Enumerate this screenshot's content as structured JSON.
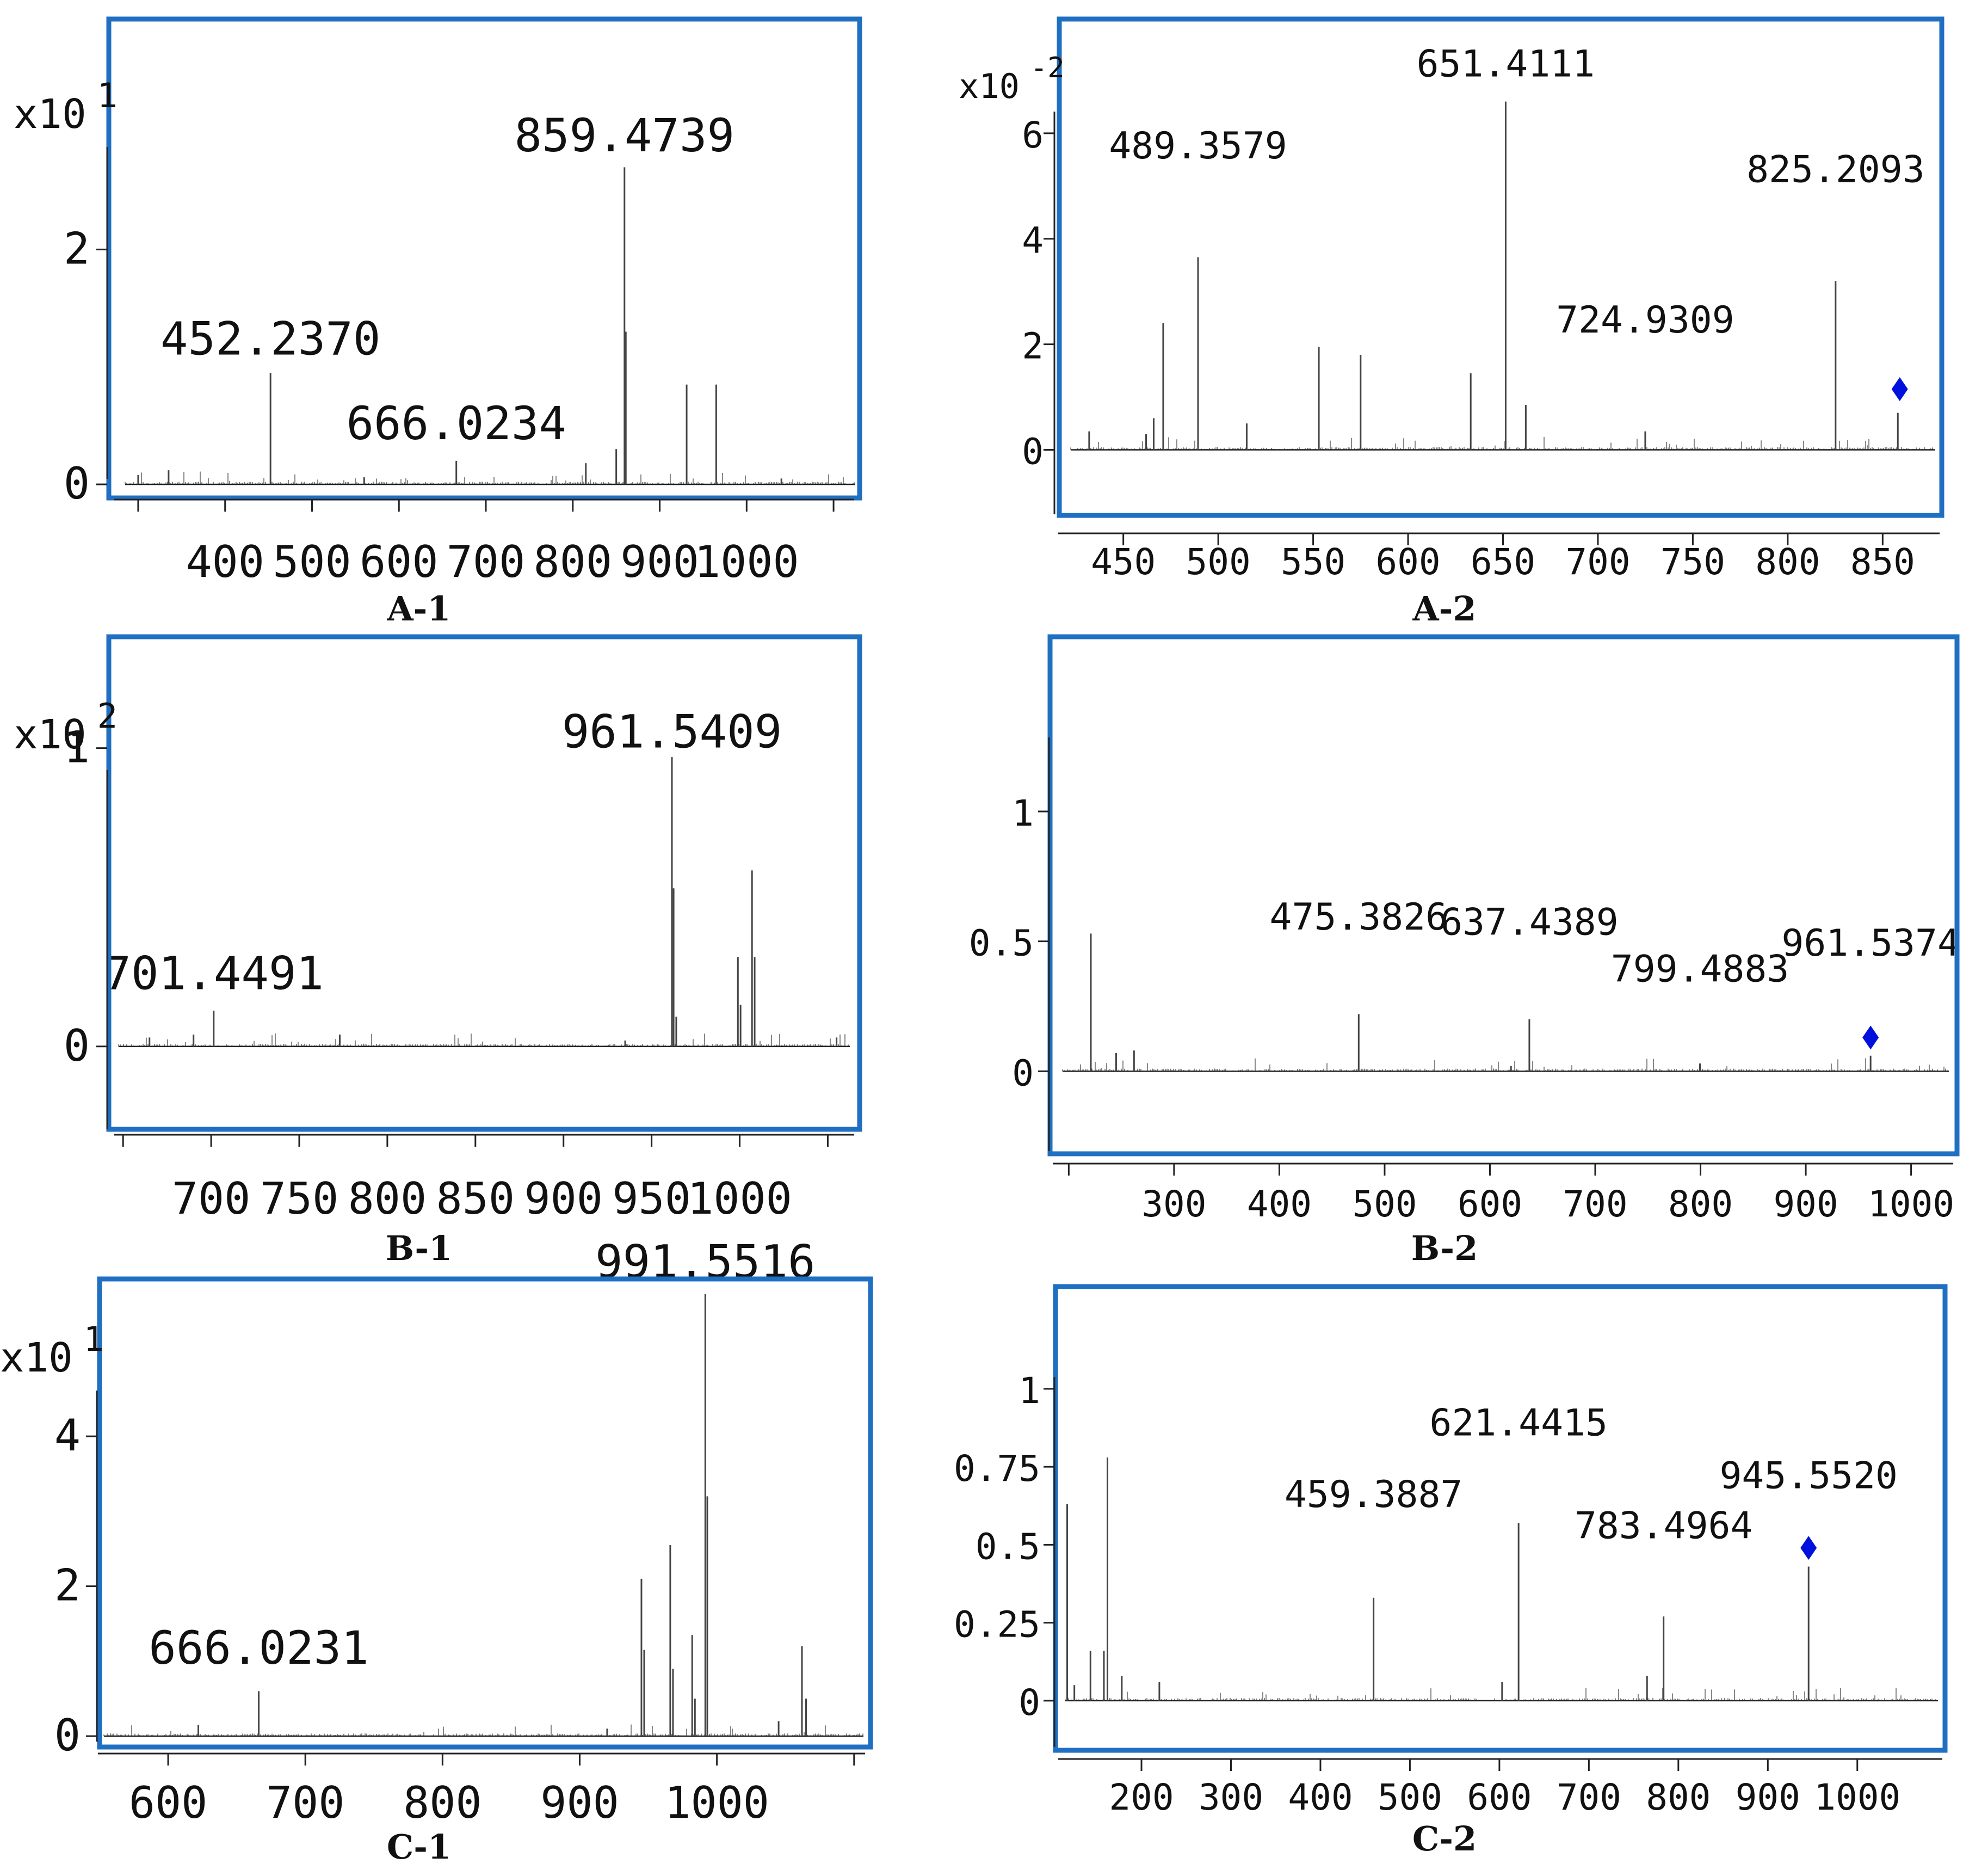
{
  "figure": {
    "accent_frame_color": "#1f6fc2",
    "marker_color": "#0011dd",
    "marker_shape": "diamond",
    "spectrum_color": "#444444"
  },
  "chart_data": [
    {
      "id": "A-1",
      "type": "bar",
      "label": "A-1",
      "multiplier": "x10",
      "exponent": "1",
      "xlim": [
        280,
        1130
      ],
      "ylim": [
        0,
        3.8
      ],
      "xticks": [
        400,
        500,
        600,
        700,
        800,
        900,
        1000
      ],
      "yticks": [
        0,
        2
      ],
      "peaks": [
        {
          "x": 300,
          "y": 0.08
        },
        {
          "x": 335,
          "y": 0.12
        },
        {
          "x": 452.237,
          "y": 0.95
        },
        {
          "x": 560,
          "y": 0.06
        },
        {
          "x": 666.0234,
          "y": 0.2
        },
        {
          "x": 815,
          "y": 0.18
        },
        {
          "x": 850,
          "y": 0.3
        },
        {
          "x": 859.4739,
          "y": 2.7
        },
        {
          "x": 861,
          "y": 1.3
        },
        {
          "x": 931,
          "y": 0.85
        },
        {
          "x": 965,
          "y": 0.85
        },
        {
          "x": 1040,
          "y": 0.05
        }
      ],
      "annotations": [
        {
          "text": "452.2370",
          "x": 452.237,
          "y": 1.05
        },
        {
          "text": "666.0234",
          "x": 666.0234,
          "y": 0.33
        },
        {
          "text": "859.4739",
          "x": 859.4739,
          "y": 2.78
        }
      ]
    },
    {
      "id": "A-2",
      "type": "bar",
      "label": "A-2",
      "multiplier": "x10",
      "exponent": "-2",
      "xlim": [
        420,
        880
      ],
      "ylim": [
        -0.5,
        7.7
      ],
      "xticks": [
        450,
        500,
        550,
        600,
        650,
        700,
        750,
        800,
        850
      ],
      "yticks": [
        0,
        2,
        4,
        6
      ],
      "peaks": [
        {
          "x": 432,
          "y": 0.35
        },
        {
          "x": 462,
          "y": 0.3
        },
        {
          "x": 466,
          "y": 0.6
        },
        {
          "x": 471,
          "y": 2.4
        },
        {
          "x": 489.3579,
          "y": 3.65
        },
        {
          "x": 515,
          "y": 0.5
        },
        {
          "x": 553,
          "y": 1.95
        },
        {
          "x": 575,
          "y": 1.8
        },
        {
          "x": 633,
          "y": 1.45
        },
        {
          "x": 651.4111,
          "y": 6.6
        },
        {
          "x": 662,
          "y": 0.85
        },
        {
          "x": 724.9309,
          "y": 0.35
        },
        {
          "x": 825.2093,
          "y": 3.2
        },
        {
          "x": 858,
          "y": 0.7
        }
      ],
      "marker": {
        "x": 859,
        "y": 1.15
      },
      "annotations": [
        {
          "text": "489.3579",
          "x": 489.3579,
          "y": 5.4
        },
        {
          "text": "651.4111",
          "x": 651.4111,
          "y": 6.95
        },
        {
          "text": "724.9309",
          "x": 724.9309,
          "y": 2.1
        },
        {
          "text": "825.2093",
          "x": 825.2093,
          "y": 4.95
        }
      ]
    },
    {
      "id": "B-1",
      "type": "bar",
      "label": "B-1",
      "multiplier": "x10",
      "exponent": "2",
      "xlim": [
        645,
        1065
      ],
      "ylim": [
        -0.15,
        1.2
      ],
      "xticks": [
        700,
        750,
        800,
        850,
        900,
        950,
        1000
      ],
      "yticks": [
        0,
        1
      ],
      "peaks": [
        {
          "x": 665,
          "y": 0.03
        },
        {
          "x": 690,
          "y": 0.04
        },
        {
          "x": 701.4491,
          "y": 0.12
        },
        {
          "x": 773,
          "y": 0.04
        },
        {
          "x": 935,
          "y": 0.02
        },
        {
          "x": 961.5409,
          "y": 0.97
        },
        {
          "x": 962.5,
          "y": 0.53
        },
        {
          "x": 964,
          "y": 0.1
        },
        {
          "x": 999,
          "y": 0.3
        },
        {
          "x": 1000.5,
          "y": 0.14
        },
        {
          "x": 1007,
          "y": 0.59
        },
        {
          "x": 1008.5,
          "y": 0.3
        },
        {
          "x": 1055,
          "y": 0.03
        }
      ],
      "annotations": [
        {
          "text": "701.4491",
          "x": 701.4491,
          "y": 0.17
        },
        {
          "text": "961.5409",
          "x": 961.5409,
          "y": 0.98
        }
      ]
    },
    {
      "id": "B-2",
      "type": "bar",
      "label": "B-2",
      "multiplier": "",
      "exponent": "",
      "xlim": [
        190,
        1040
      ],
      "ylim": [
        -0.15,
        1.4
      ],
      "xticks": [
        300,
        400,
        500,
        600,
        700,
        800,
        900,
        1000
      ],
      "yticks": [
        0,
        0.5,
        1
      ],
      "ytick_labels": [
        "0",
        "0.5",
        "1"
      ],
      "peaks": [
        {
          "x": 221,
          "y": 0.53
        },
        {
          "x": 245,
          "y": 0.07
        },
        {
          "x": 262,
          "y": 0.08
        },
        {
          "x": 475.3826,
          "y": 0.22
        },
        {
          "x": 620,
          "y": 0.02
        },
        {
          "x": 637.4389,
          "y": 0.2
        },
        {
          "x": 799.4883,
          "y": 0.03
        },
        {
          "x": 961.5374,
          "y": 0.06
        }
      ],
      "marker": {
        "x": 961.5374,
        "y": 0.13
      },
      "annotations": [
        {
          "text": "475.3826",
          "x": 475.3826,
          "y": 0.52
        },
        {
          "text": "637.4389",
          "x": 637.4389,
          "y": 0.5
        },
        {
          "text": "799.4883",
          "x": 799.4883,
          "y": 0.32
        },
        {
          "text": "961.5374",
          "x": 961.5374,
          "y": 0.42
        }
      ]
    },
    {
      "id": "C-1",
      "type": "bar",
      "label": "C-1",
      "multiplier": "x10",
      "exponent": "1",
      "xlim": [
        550,
        1110
      ],
      "ylim": [
        0,
        6.1
      ],
      "xticks": [
        600,
        700,
        800,
        900,
        1000
      ],
      "yticks": [
        0,
        2,
        4
      ],
      "peaks": [
        {
          "x": 622,
          "y": 0.15
        },
        {
          "x": 666.0231,
          "y": 0.6
        },
        {
          "x": 920,
          "y": 0.1
        },
        {
          "x": 945,
          "y": 2.1
        },
        {
          "x": 947,
          "y": 1.15
        },
        {
          "x": 966,
          "y": 2.55
        },
        {
          "x": 968,
          "y": 0.9
        },
        {
          "x": 982,
          "y": 1.35
        },
        {
          "x": 984,
          "y": 0.5
        },
        {
          "x": 991.5516,
          "y": 5.9
        },
        {
          "x": 993,
          "y": 3.2
        },
        {
          "x": 1045,
          "y": 0.2
        },
        {
          "x": 1062,
          "y": 1.2
        },
        {
          "x": 1065,
          "y": 0.5
        }
      ],
      "annotations": [
        {
          "text": "666.0231",
          "x": 666.0231,
          "y": 0.88
        },
        {
          "text": "991.5516",
          "x": 991.5516,
          "y": 6.03
        }
      ]
    },
    {
      "id": "C-2",
      "type": "bar",
      "label": "C-2",
      "multiplier": "",
      "exponent": "",
      "xlim": [
        110,
        1095
      ],
      "ylim": [
        -0.07,
        1.3
      ],
      "xticks": [
        200,
        300,
        400,
        500,
        600,
        700,
        800,
        900,
        1000
      ],
      "yticks": [
        0,
        0.25,
        0.5,
        0.75,
        1
      ],
      "ytick_labels": [
        "0",
        "0.25",
        "0.5",
        "0.75",
        "1"
      ],
      "peaks": [
        {
          "x": 117,
          "y": 0.63
        },
        {
          "x": 125,
          "y": 0.05
        },
        {
          "x": 143,
          "y": 0.16
        },
        {
          "x": 158,
          "y": 0.16
        },
        {
          "x": 162,
          "y": 0.78
        },
        {
          "x": 178,
          "y": 0.08
        },
        {
          "x": 220,
          "y": 0.06
        },
        {
          "x": 459.3887,
          "y": 0.33
        },
        {
          "x": 603,
          "y": 0.06
        },
        {
          "x": 621.4415,
          "y": 0.57
        },
        {
          "x": 765,
          "y": 0.08
        },
        {
          "x": 783.4964,
          "y": 0.27
        },
        {
          "x": 945.552,
          "y": 0.43
        }
      ],
      "marker": {
        "x": 945.552,
        "y": 0.49
      },
      "annotations": [
        {
          "text": "459.3887",
          "x": 459.3887,
          "y": 0.6
        },
        {
          "text": "621.4415",
          "x": 621.4415,
          "y": 0.83
        },
        {
          "text": "783.4964",
          "x": 783.4964,
          "y": 0.5
        },
        {
          "text": "945.5520",
          "x": 945.552,
          "y": 0.66
        }
      ]
    }
  ]
}
